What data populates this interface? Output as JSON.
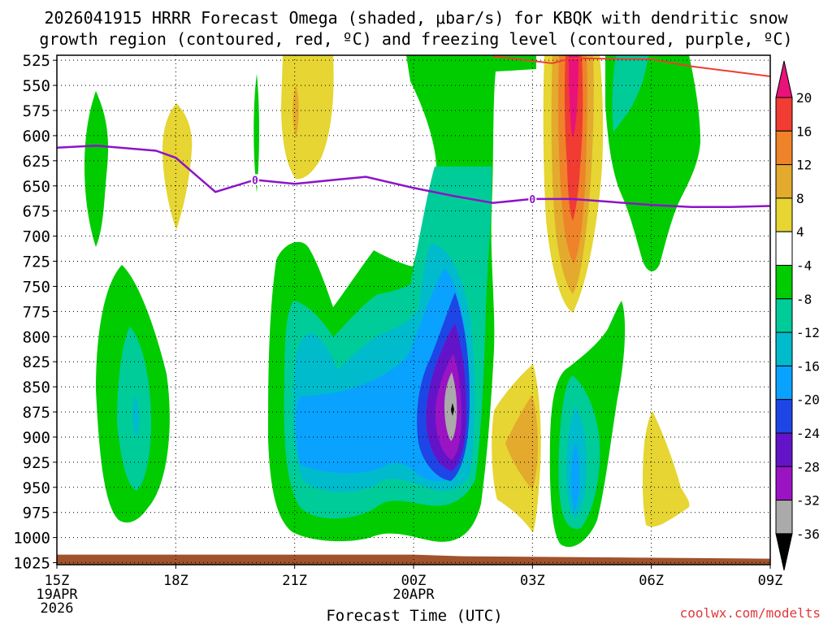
{
  "chart_data": {
    "type": "heatmap",
    "title_line1": "2026041915 HRRR Forecast Omega (shaded, μbar/s) for KBQK with dendritic snow",
    "title_line2": "growth region (contoured, red, ºC) and freezing level (contoured, purple, ºC)",
    "xlabel": "Forecast Time (UTC)",
    "ylabel": "",
    "credit": "coolwx.com/modelts",
    "x_ticks": [
      "15Z",
      "18Z",
      "21Z",
      "00Z",
      "03Z",
      "06Z",
      "09Z"
    ],
    "x_tick_sublabels": [
      {
        "tick": "15Z",
        "lines": [
          "19APR",
          "2026"
        ]
      },
      {
        "tick": "00Z",
        "lines": [
          "20APR"
        ]
      }
    ],
    "x_range_hours": [
      0,
      18
    ],
    "y_ticks": [
      525,
      550,
      575,
      600,
      625,
      650,
      675,
      700,
      725,
      750,
      775,
      800,
      825,
      850,
      875,
      900,
      925,
      950,
      975,
      1000,
      1025
    ],
    "y_range_mb": [
      520,
      1027
    ],
    "colorbar": {
      "labels": [
        "20",
        "16",
        "12",
        "8",
        "4",
        "-4",
        "-8",
        "-12",
        "-16",
        "-20",
        "-24",
        "-28",
        "-32",
        "-36"
      ],
      "bins": [
        {
          "color": "#e8127a"
        },
        {
          "color": "#f03c32"
        },
        {
          "color": "#ee8329"
        },
        {
          "color": "#e3aa2e"
        },
        {
          "color": "#e6d532"
        },
        {
          "color": "#ffffff"
        },
        {
          "color": "#00cc00"
        },
        {
          "color": "#00cc99"
        },
        {
          "color": "#00bbcc"
        },
        {
          "color": "#0aa2ff"
        },
        {
          "color": "#1e46e6"
        },
        {
          "color": "#6414c8"
        },
        {
          "color": "#9b14c3"
        },
        {
          "color": "#aaaaaa"
        },
        {
          "color": "#000000"
        }
      ]
    },
    "freezing_level": {
      "color": "#8c14c8",
      "label": "0",
      "points_hours_mb": [
        [
          0,
          612
        ],
        [
          1,
          610
        ],
        [
          2.5,
          615
        ],
        [
          3,
          622
        ],
        [
          4,
          656
        ],
        [
          5,
          644
        ],
        [
          6,
          648
        ],
        [
          7,
          644
        ],
        [
          7.8,
          641
        ],
        [
          9,
          652
        ],
        [
          10,
          660
        ],
        [
          11,
          667
        ],
        [
          12,
          663
        ],
        [
          13,
          663
        ],
        [
          14,
          666
        ],
        [
          15,
          669
        ],
        [
          16,
          671
        ],
        [
          17,
          671
        ],
        [
          18,
          670
        ]
      ]
    },
    "dgz_top": {
      "color": "#f03c32",
      "points_hours_mb": [
        [
          11,
          521
        ],
        [
          12.5,
          528
        ],
        [
          13,
          523
        ],
        [
          15,
          524
        ],
        [
          16,
          531
        ],
        [
          17,
          536
        ],
        [
          18,
          541
        ]
      ]
    },
    "terrain": {
      "color": "#a0522d",
      "top_mb_at_start": 1017,
      "top_mb_at_end": 1021
    }
  }
}
